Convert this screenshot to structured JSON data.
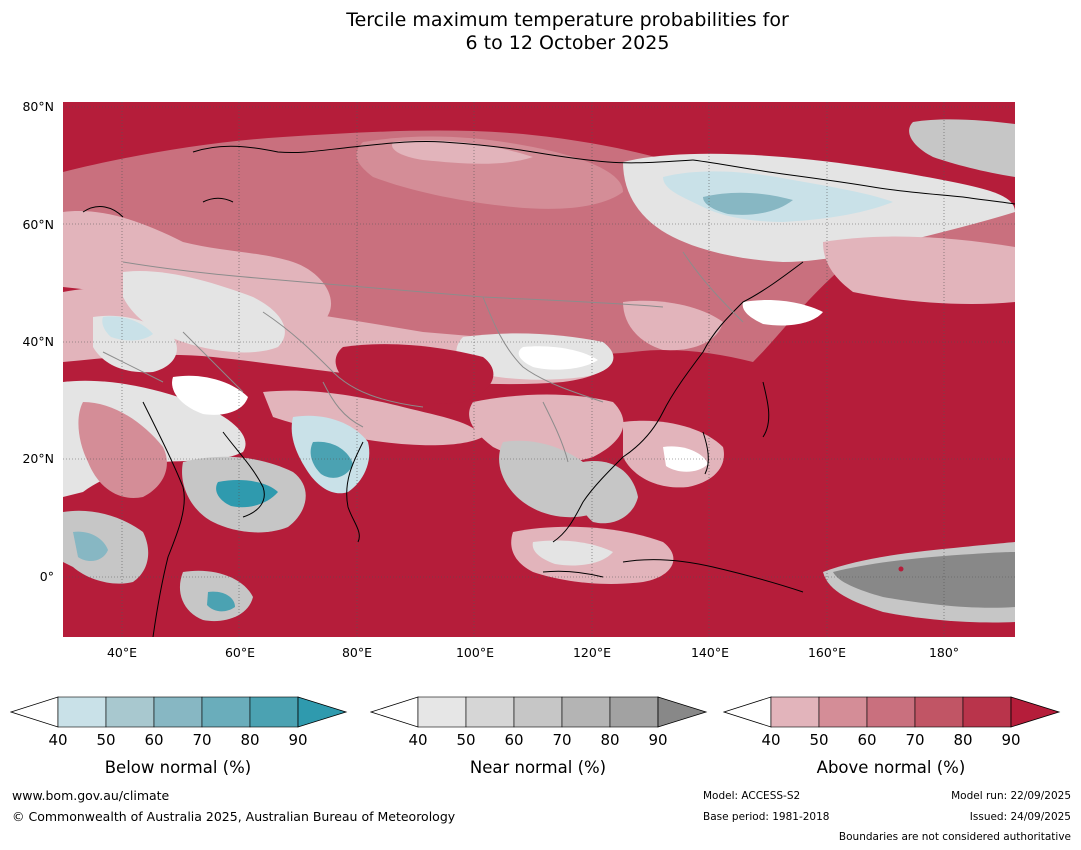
{
  "title": {
    "line1": "Tercile maximum temperature probabilities for",
    "line2": "6 to 12 October 2025"
  },
  "map": {
    "lat_labels": [
      "80°N",
      "60°N",
      "40°N",
      "20°N",
      "0°"
    ],
    "lon_labels": [
      "40°E",
      "60°E",
      "80°E",
      "100°E",
      "120°E",
      "140°E",
      "160°E",
      "180°"
    ],
    "colors": {
      "above_dark": "#b51d3a",
      "above_mid": "#c44a5f",
      "above_light": "#d48d97",
      "above_pale": "#e2b4bb",
      "near_light": "#e4e4e4",
      "near_mid": "#c6c6c6",
      "near_dark": "#888888",
      "below_light": "#c9e1e8",
      "below_mid": "#87b7c3",
      "below_dark": "#2f9aae",
      "coast": "#000000",
      "border": "#8c8c8c"
    }
  },
  "legends": [
    {
      "title": "Below normal (%)",
      "ticks": [
        "40",
        "50",
        "60",
        "70",
        "80",
        "90"
      ],
      "colors": [
        "#ffffff",
        "#c9e1e8",
        "#a8c8cf",
        "#87b7c3",
        "#6aadbb",
        "#4ba2b2",
        "#2f9aae"
      ]
    },
    {
      "title": "Near normal (%)",
      "ticks": [
        "40",
        "50",
        "60",
        "70",
        "80",
        "90"
      ],
      "colors": [
        "#ffffff",
        "#e6e6e6",
        "#d6d6d6",
        "#c6c6c6",
        "#b4b4b4",
        "#a2a2a2",
        "#888888"
      ]
    },
    {
      "title": "Above normal (%)",
      "ticks": [
        "40",
        "50",
        "60",
        "70",
        "80",
        "90"
      ],
      "colors": [
        "#ffffff",
        "#e2b4bb",
        "#d48d97",
        "#c9707e",
        "#c15565",
        "#b9344b",
        "#b51d3a"
      ]
    }
  ],
  "footer": {
    "website": "www.bom.gov.au/climate",
    "copyright": "© Commonwealth of Australia 2025, Australian Bureau of Meteorology",
    "model": "Model: ACCESS-S2",
    "base_period": "Base period: 1981-2018",
    "model_run": "Model run: 22/09/2025",
    "issued": "Issued: 24/09/2025",
    "disclaimer": "Boundaries are not considered authoritative"
  }
}
